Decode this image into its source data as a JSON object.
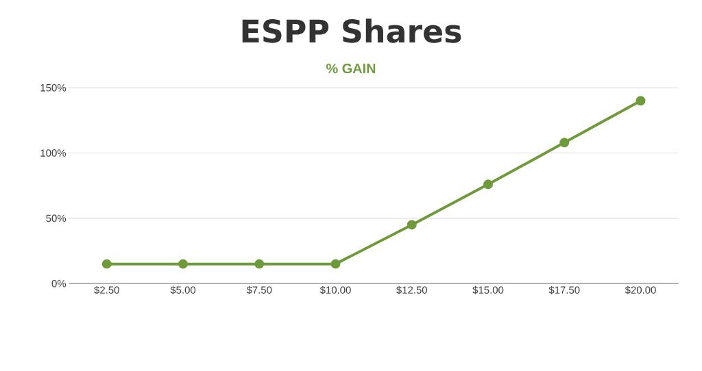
{
  "chart_data": {
    "type": "line",
    "title": "ESPP Shares",
    "subtitle": "% GAIN",
    "categories": [
      "$2.50",
      "$5.00",
      "$7.50",
      "$10.00",
      "$12.50",
      "$15.00",
      "$17.50",
      "$20.00"
    ],
    "series": [
      {
        "color": "#6e9a3c",
        "values": [
          15,
          15,
          15,
          15,
          45,
          76,
          108,
          140
        ]
      }
    ],
    "ylim": [
      0,
      150
    ],
    "yticks": [
      {
        "value": 0,
        "label": "0%"
      },
      {
        "value": 50,
        "label": "50%"
      },
      {
        "value": 100,
        "label": "100%"
      },
      {
        "value": 150,
        "label": "150%"
      }
    ],
    "grid": "y",
    "marker": "circle",
    "line_style": "solid"
  }
}
